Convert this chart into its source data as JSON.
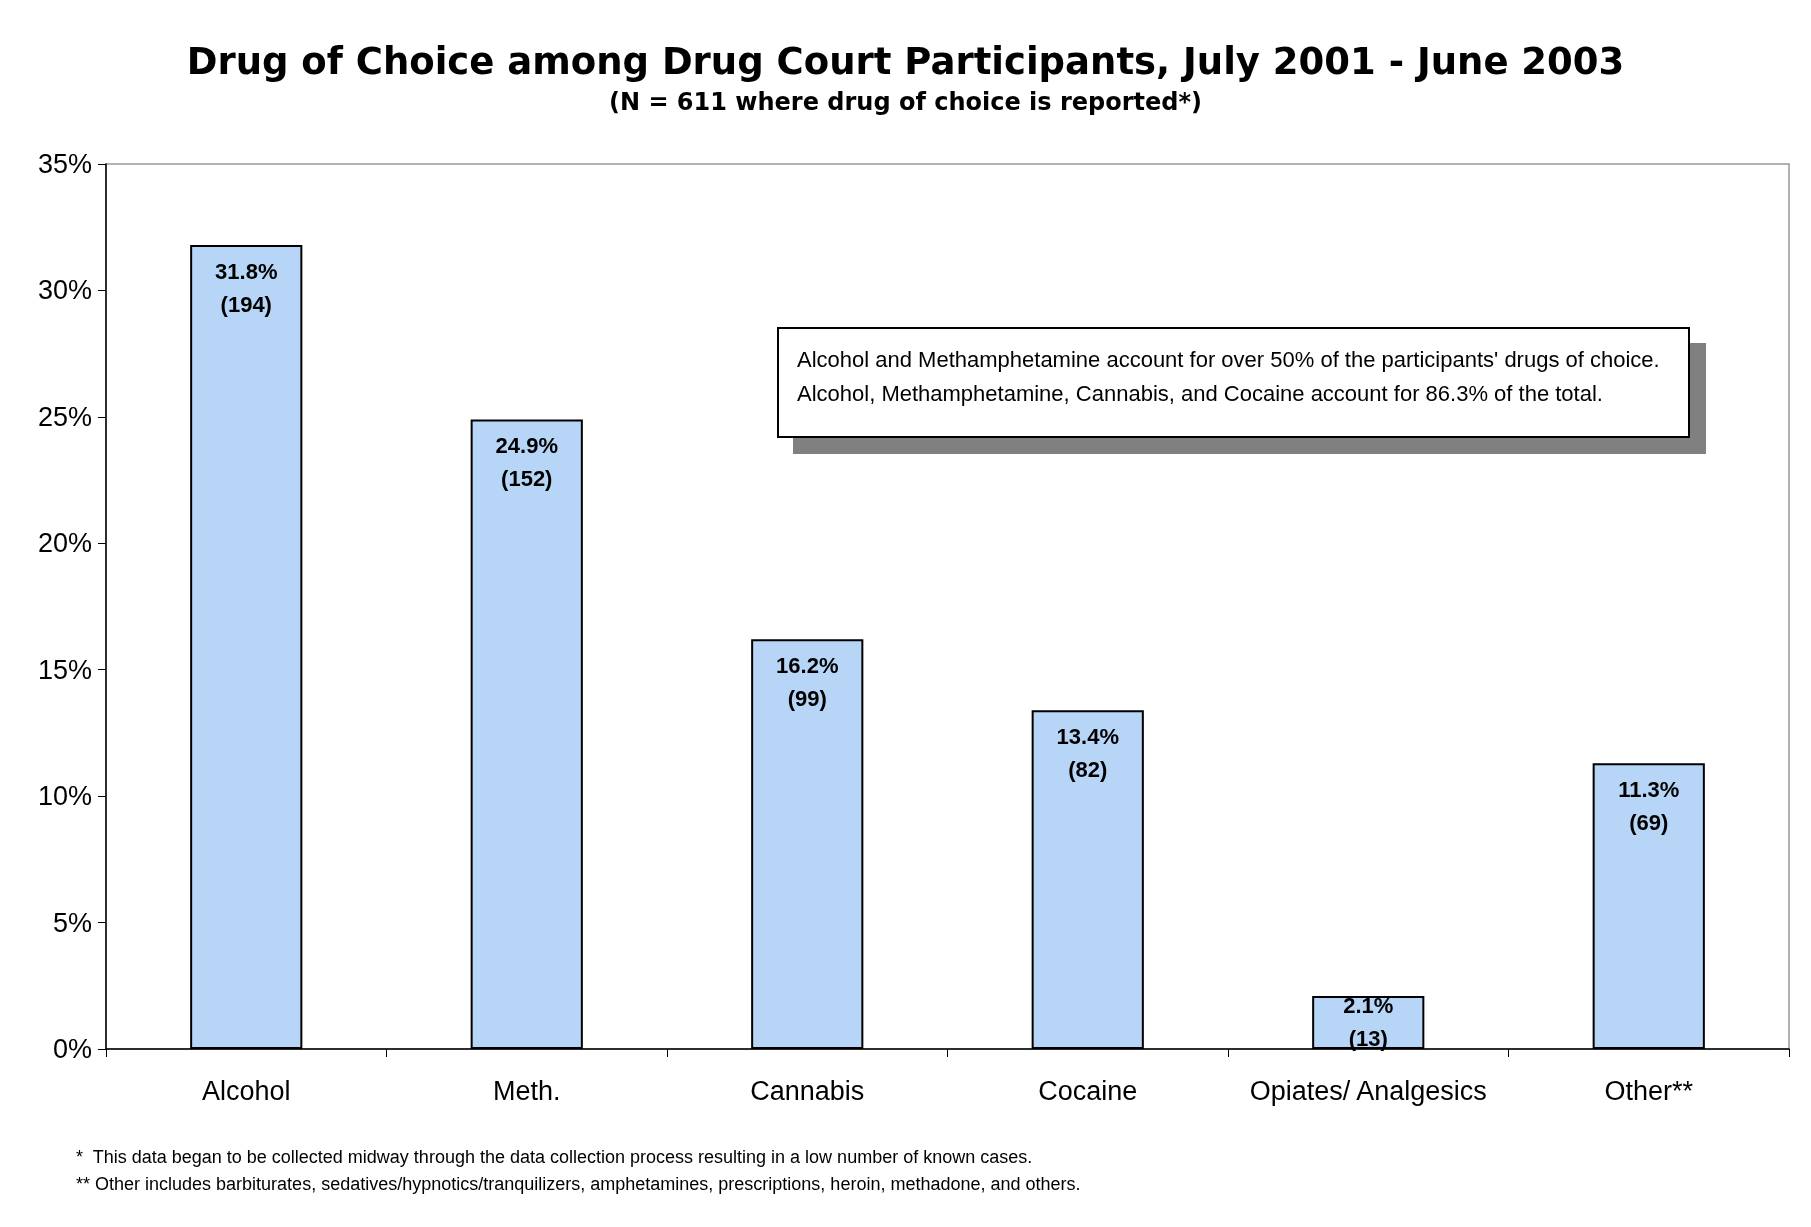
{
  "chart_data": {
    "type": "bar",
    "title": "Drug of Choice among Drug Court Participants, July 2001 - June 2003",
    "subtitle": "(N = 611 where drug of choice is reported*)",
    "categories": [
      "Alcohol",
      "Meth.",
      "Cannabis",
      "Cocaine",
      "Opiates/ Analgesics",
      "Other**"
    ],
    "values": [
      31.8,
      24.9,
      16.2,
      13.4,
      2.1,
      11.3
    ],
    "value_labels": [
      "31.8%\n(194)",
      "24.9%\n(152)",
      "16.2%\n(99)",
      "13.4%\n(82)",
      "2.1%\n(13)",
      "11.3%\n(69)"
    ],
    "color": "#b7d6f7",
    "ylim": [
      0,
      35
    ],
    "yticks": [
      {
        "value": 0,
        "label": "0%"
      },
      {
        "value": 5,
        "label": "5%"
      },
      {
        "value": 10,
        "label": "10%"
      },
      {
        "value": 15,
        "label": "15%"
      },
      {
        "value": 20,
        "label": "20%"
      },
      {
        "value": 25,
        "label": "25%"
      },
      {
        "value": 30,
        "label": "30%"
      },
      {
        "value": 35,
        "label": "35%"
      }
    ],
    "grid": false,
    "annotations": [
      "Alcohol and Methamphetamine account for over 50% of the participants' drugs of choice.\nAlcohol, Methamphetamine, Cannabis, and Cocaine account for 86.3% of the total.",
      "*  This data began to be collected midway through the data collection process resulting in a low number of known cases.",
      "** Other includes barbiturates, sedatives/hypnotics/tranquilizers, amphetamines, prescriptions, heroin, methadone, and others."
    ]
  }
}
